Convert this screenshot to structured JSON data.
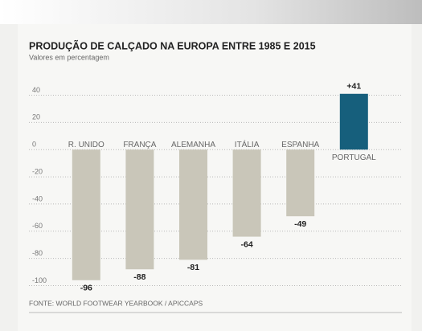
{
  "chart_data": {
    "type": "bar",
    "title": "PRODUÇÃO DE CALÇADO NA EUROPA ENTRE 1985 E 2015",
    "subtitle": "Valores em percentagem",
    "source": "FONTE: WORLD FOOTWEAR YEARBOOK / APICCAPS",
    "categories": [
      "R. UNIDO",
      "FRANÇA",
      "ALEMANHA",
      "ITÁLIA",
      "ESPANHA",
      "PORTUGAL"
    ],
    "values": [
      -96,
      -88,
      -81,
      -64,
      -49,
      41
    ],
    "value_labels": [
      "-96",
      "-88",
      "-81",
      "-64",
      "-49",
      "+41"
    ],
    "colors": [
      "#c9c6b9",
      "#c9c6b9",
      "#c9c6b9",
      "#c9c6b9",
      "#c9c6b9",
      "#165f7c"
    ],
    "ylim": [
      -105,
      45
    ],
    "yticks": [
      40,
      20,
      0,
      -20,
      -40,
      -60,
      -80,
      -100
    ],
    "grid": true
  }
}
